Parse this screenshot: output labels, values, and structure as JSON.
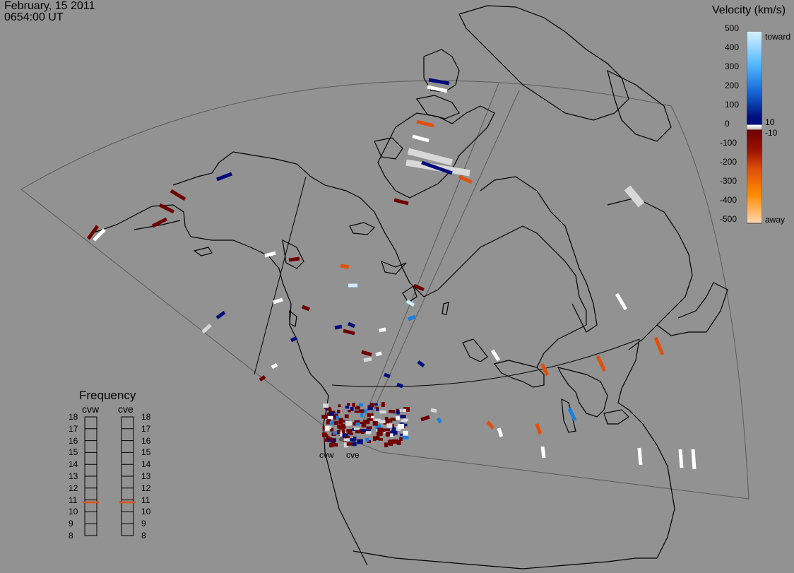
{
  "header": {
    "date": "February, 15 2011",
    "time": "0654:00 UT"
  },
  "velocity_scale": {
    "title": "Velocity (km/s)",
    "ticks": [
      "500",
      "400",
      "300",
      "200",
      "100",
      "0",
      "-100",
      "-200",
      "-300",
      "-400",
      "-500"
    ],
    "inner_ticks": [
      "10",
      "-10"
    ],
    "toward_label": "toward",
    "away_label": "away",
    "colors": {
      "toward_high": "#cfeeff",
      "toward_mid": "#1a7fe0",
      "toward_low": "#000d7a",
      "near_zero": "#d8d8d8",
      "away_low": "#6e0000",
      "away_mid": "#e0500a",
      "away_high": "#ffc890"
    }
  },
  "frequency_panel": {
    "title": "Frequency",
    "radars": [
      {
        "name": "cvw",
        "selected_mhz": 10.8
      },
      {
        "name": "cve",
        "selected_mhz": 10.8
      }
    ],
    "ticks": [
      "18",
      "17",
      "16",
      "15",
      "14",
      "13",
      "12",
      "11",
      "10",
      "9",
      "8"
    ],
    "marker_color": "#e05010"
  },
  "map": {
    "radar_labels": [
      "cvw",
      "cve"
    ],
    "background": "#929292",
    "coastline_color": "#000000"
  }
}
